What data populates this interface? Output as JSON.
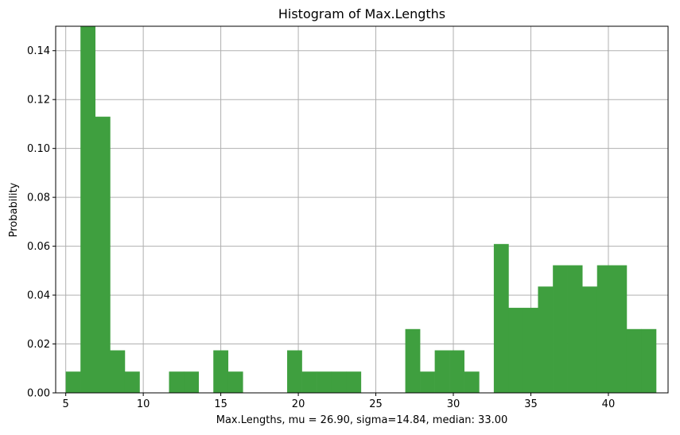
{
  "chart_data": {
    "type": "bar",
    "title": "Histogram of Max.Lengths",
    "xlabel": "Max.Lengths, mu = 26.90, sigma=14.84, median: 33.00",
    "ylabel": "Probability",
    "xlim": [
      4.35,
      43.85
    ],
    "ylim": [
      0,
      0.15
    ],
    "x_ticks": [
      5,
      10,
      15,
      20,
      25,
      30,
      35,
      40
    ],
    "y_ticks": [
      0.0,
      0.02,
      0.04,
      0.06,
      0.08,
      0.1,
      0.12,
      0.14
    ],
    "y_tick_labels": [
      "0.00",
      "0.02",
      "0.04",
      "0.06",
      "0.08",
      "0.10",
      "0.12",
      "0.14"
    ],
    "grid": true,
    "bar_color": "#3f9f3f",
    "bins": [
      {
        "x0": 5.0,
        "x1": 5.95,
        "value": 0.0087
      },
      {
        "x0": 5.95,
        "x1": 6.9,
        "value": 0.155
      },
      {
        "x0": 6.9,
        "x1": 7.86,
        "value": 0.113
      },
      {
        "x0": 7.86,
        "x1": 8.81,
        "value": 0.0174
      },
      {
        "x0": 8.81,
        "x1": 9.76,
        "value": 0.0087
      },
      {
        "x0": 9.76,
        "x1": 10.71,
        "value": 0
      },
      {
        "x0": 10.71,
        "x1": 11.66,
        "value": 0
      },
      {
        "x0": 11.66,
        "x1": 12.62,
        "value": 0.0087
      },
      {
        "x0": 12.62,
        "x1": 13.57,
        "value": 0.0087
      },
      {
        "x0": 13.57,
        "x1": 14.52,
        "value": 0
      },
      {
        "x0": 14.52,
        "x1": 15.47,
        "value": 0.0174
      },
      {
        "x0": 15.47,
        "x1": 16.42,
        "value": 0.0087
      },
      {
        "x0": 16.42,
        "x1": 17.38,
        "value": 0
      },
      {
        "x0": 17.38,
        "x1": 18.33,
        "value": 0
      },
      {
        "x0": 18.33,
        "x1": 19.28,
        "value": 0
      },
      {
        "x0": 19.28,
        "x1": 20.23,
        "value": 0.0174
      },
      {
        "x0": 20.23,
        "x1": 21.18,
        "value": 0.0087
      },
      {
        "x0": 21.18,
        "x1": 22.14,
        "value": 0.0087
      },
      {
        "x0": 22.14,
        "x1": 23.09,
        "value": 0.0087
      },
      {
        "x0": 23.09,
        "x1": 24.04,
        "value": 0.0087
      },
      {
        "x0": 24.04,
        "x1": 24.99,
        "value": 0
      },
      {
        "x0": 24.99,
        "x1": 25.94,
        "value": 0
      },
      {
        "x0": 25.94,
        "x1": 26.9,
        "value": 0
      },
      {
        "x0": 26.9,
        "x1": 27.85,
        "value": 0.0261
      },
      {
        "x0": 27.85,
        "x1": 28.8,
        "value": 0.0087
      },
      {
        "x0": 28.8,
        "x1": 29.75,
        "value": 0.0174
      },
      {
        "x0": 29.75,
        "x1": 30.7,
        "value": 0.0174
      },
      {
        "x0": 30.7,
        "x1": 31.66,
        "value": 0.0087
      },
      {
        "x0": 31.66,
        "x1": 32.61,
        "value": 0
      },
      {
        "x0": 32.61,
        "x1": 33.56,
        "value": 0.0609
      },
      {
        "x0": 33.56,
        "x1": 34.51,
        "value": 0.0348
      },
      {
        "x0": 34.51,
        "x1": 35.46,
        "value": 0.0348
      },
      {
        "x0": 35.46,
        "x1": 36.42,
        "value": 0.0435
      },
      {
        "x0": 36.42,
        "x1": 37.37,
        "value": 0.0522
      },
      {
        "x0": 37.37,
        "x1": 38.32,
        "value": 0.0522
      },
      {
        "x0": 38.32,
        "x1": 39.27,
        "value": 0.0435
      },
      {
        "x0": 39.27,
        "x1": 40.22,
        "value": 0.0522
      },
      {
        "x0": 40.22,
        "x1": 41.18,
        "value": 0.0522
      },
      {
        "x0": 41.18,
        "x1": 42.13,
        "value": 0.0261
      },
      {
        "x0": 42.13,
        "x1": 43.08,
        "value": 0.0261
      }
    ]
  }
}
